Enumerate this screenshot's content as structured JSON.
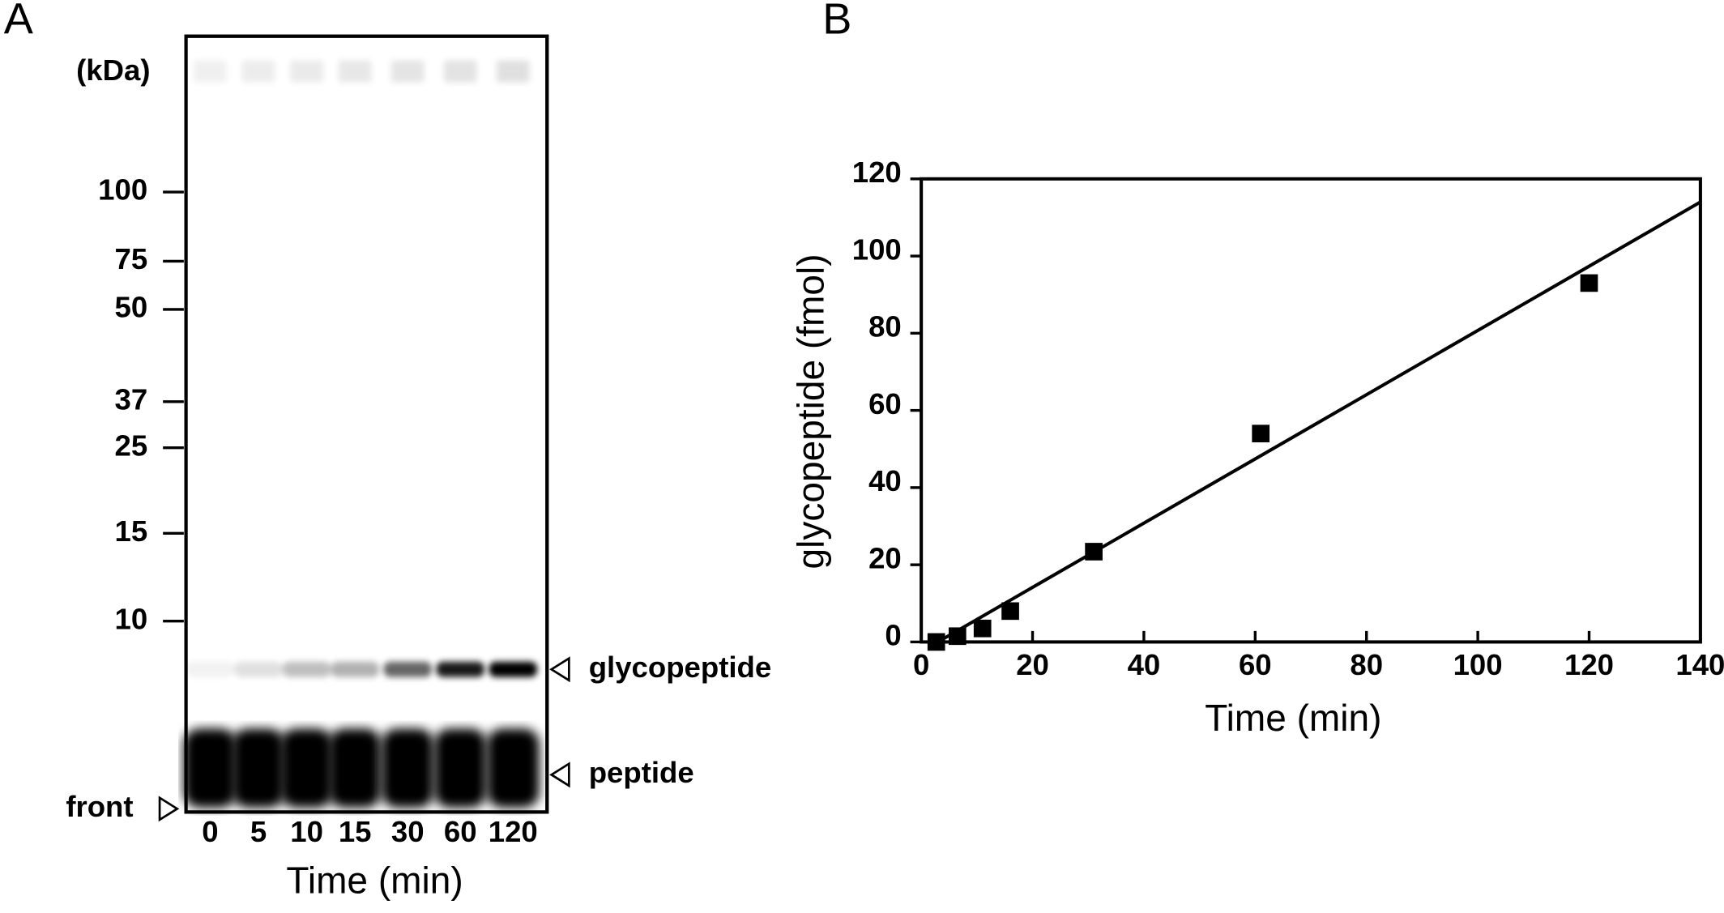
{
  "panel_a": {
    "label": "A",
    "unit_label": "(kDa)",
    "markers": [
      "100",
      "75",
      "50",
      "37",
      "25",
      "15",
      "10"
    ],
    "lanes": [
      "0",
      "5",
      "10",
      "15",
      "30",
      "60",
      "120"
    ],
    "band_labels": [
      "glycopeptide",
      "peptide"
    ],
    "front_label": "front",
    "x_label": "Time (min)"
  },
  "chart_data": {
    "type": "scatter",
    "panel_label": "B",
    "x_label": "Time (min)",
    "y_label": "glycopeptide (fmol)",
    "x": [
      2.7,
      6.5,
      11,
      16,
      31,
      61,
      120
    ],
    "values": [
      0,
      1.5,
      3.5,
      8,
      23.4,
      54,
      93
    ],
    "color": "#000000",
    "fit_line": {
      "x": [
        3,
        140
      ],
      "y": [
        0,
        114
      ]
    },
    "xlim": [
      0,
      140
    ],
    "xticks": [
      0,
      20,
      40,
      60,
      80,
      100,
      120,
      140
    ],
    "ylim": [
      0,
      120
    ],
    "yticks": [
      0,
      20,
      40,
      60,
      80,
      100,
      120
    ]
  }
}
